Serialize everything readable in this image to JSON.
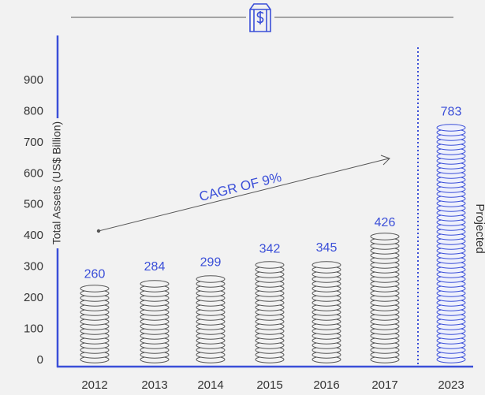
{
  "chart_data": {
    "type": "coin-bar",
    "y_axis_label": "Total Assets (US$ Billion)",
    "annotation": "CAGR OF 9%",
    "projected_label": "Projected",
    "categories": [
      "2012",
      "2013",
      "2014",
      "2015",
      "2016",
      "2017",
      "2023"
    ],
    "values": [
      260,
      284,
      299,
      342,
      345,
      426,
      783
    ],
    "colors": [
      "#555555",
      "#555555",
      "#555555",
      "#555555",
      "#555555",
      "#555555",
      "#3b4fd8"
    ],
    "label_color": "#3b4fd8",
    "ylim": [
      0,
      900
    ],
    "yticks": [
      0,
      100,
      200,
      300,
      400,
      500,
      600,
      700,
      800,
      900
    ]
  }
}
